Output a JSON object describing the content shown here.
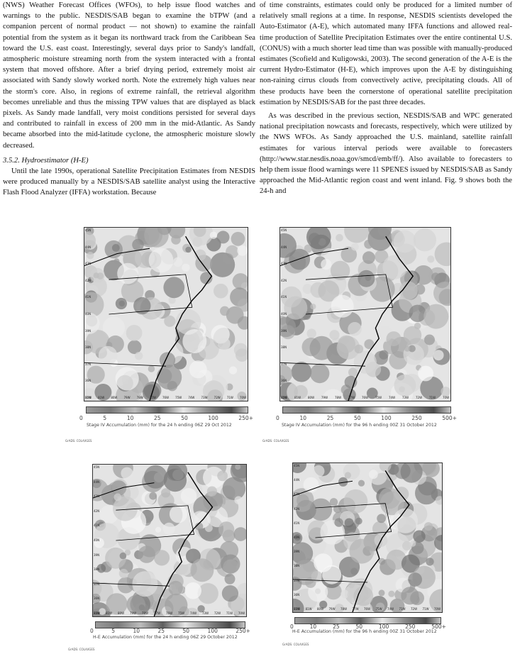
{
  "left_column": {
    "p1": "(NWS) Weather Forecast Offices (WFOs), to help issue flood watches and warnings to the public. NESDIS/SAB began to examine the bTPW (and a companion percent of normal product — not shown) to examine the rainfall potential from the system as it began its northward track from the Caribbean Sea toward the U.S. east coast. Interestingly, several days prior to Sandy's landfall, atmospheric moisture streaming north from the system interacted with a frontal system that moved offshore. After a brief drying period, extremely moist air associated with Sandy slowly worked north. Note the extremely high values near the storm's core. Also, in regions of extreme rainfall, the retrieval algorithm becomes unreliable and thus the missing TPW values that are displayed as black pixels. As Sandy made landfall, very moist conditions persisted for several days and contributed to rainfall in excess of 200 mm in the mid-Atlantic. As Sandy became absorbed into the mid-latitude cyclone, the atmospheric moisture slowly decreased.",
    "heading": "3.5.2. Hydroestimator (H-E)",
    "p2": "Until the late 1990s, operational Satellite Precipitation Estimates from NESDIS were produced manually by a NESDIS/SAB satellite analyst using the Interactive Flash Flood Analyzer (IFFA) workstation. Because"
  },
  "right_column": {
    "p1": "of time constraints, estimates could only be produced for a limited number of relatively small regions at a time. In response, NESDIS scientists developed the Auto-Estimator (A-E), which automated many IFFA functions and allowed real-time production of Satellite Precipitation Estimates over the entire continental U.S. (CONUS) with a much shorter lead time than was possible with manually-produced estimates (Scofield and Kuligowski, 2003). The second generation of the A-E is the current Hydro-Estimator (H-E), which improves upon the A-E by distinguishing non-raining cirrus clouds from convectively active, precipitating clouds. All of these products have been the cornerstone of operational satellite precipitation estimation by NESDIS/SAB for the past three decades.",
    "p2_start": "As was described in the previous section, NESDIS/SAB and WPC generated national precipitation nowcasts and forecasts, respectively, which were utilized by the NWS WFOs. As Sandy approached the U.S. mainland, satellite rainfall estimates for various interval periods were available to forecasters (",
    "url": "http://www.star.nesdis.noaa.gov/smcd/emb/ff/",
    "p2_end": "). Also available to forecasters to help them issue flood warnings were 11 SPENES issued by NESDIS/SAB as Sandy approached the Mid-Atlantic region coast and went inland. Fig. 9 shows both the 24-h and"
  },
  "figure": {
    "lat_labels": [
      "45N",
      "44N",
      "43N",
      "42N",
      "41N",
      "40N",
      "39N",
      "38N",
      "37N",
      "36N",
      "35N"
    ],
    "lon_labels": [
      "82W",
      "81W",
      "80W",
      "79W",
      "78W",
      "77W",
      "76W",
      "75W",
      "74W",
      "73W",
      "72W",
      "71W",
      "70W"
    ],
    "credit": "GrADS: COLA/IGES",
    "panels": [
      {
        "caption": "Stage IV Accumulation (mm) for the 24 h ending 06Z 29 Oct 2012",
        "ticks": [
          "0",
          "5",
          "10",
          "25",
          "50",
          "100",
          "250+"
        ]
      },
      {
        "caption": "Stage IV Accumulation (mm) for the 96 h ending 00Z 31 October 2012",
        "ticks": [
          "0",
          "10",
          "25",
          "50",
          "100",
          "250",
          "500+"
        ]
      },
      {
        "caption": "H-E Accumulation (mm) for the 24 h ending 06Z 29 October 2012",
        "ticks": [
          "0",
          "5",
          "10",
          "25",
          "50",
          "100",
          "250+"
        ]
      },
      {
        "caption": "H-E Accumulation (mm) for the 96 h ending 00Z 31 October 2012",
        "ticks": [
          "0",
          "10",
          "25",
          "50",
          "100",
          "250",
          "500+"
        ]
      }
    ]
  }
}
